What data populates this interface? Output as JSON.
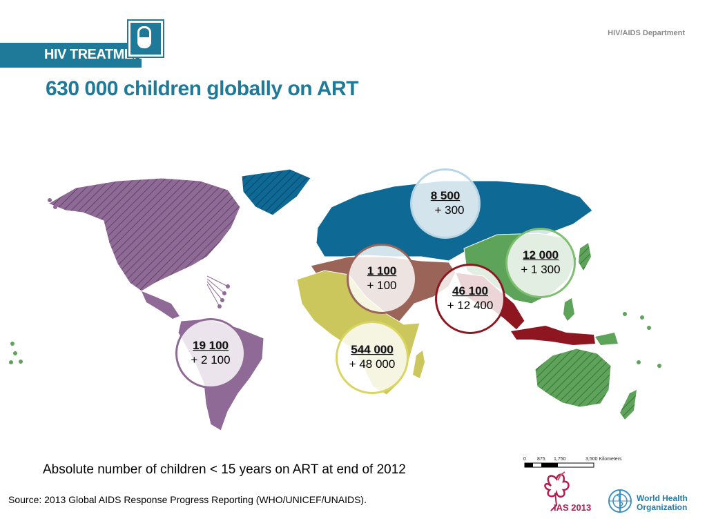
{
  "header": {
    "banner_label": "HIV TREATMENT",
    "department": "HIV/AIDS Department",
    "pill_icon": "pill-icon"
  },
  "title": "630 000 children globally on ART",
  "regions": [
    {
      "id": "europe",
      "total": "8 500",
      "change": "+ 300",
      "color": "#0e6a95"
    },
    {
      "id": "western-pacific",
      "total": "12 000",
      "change": "+ 1 300",
      "color": "#5ea35a"
    },
    {
      "id": "eastern-mediterranean",
      "total": "1 100",
      "change": "+ 100",
      "color": "#9a6459"
    },
    {
      "id": "south-east-asia",
      "total": "46 100",
      "change": "+ 12 400",
      "color": "#8e1620"
    },
    {
      "id": "americas",
      "total": "19 100",
      "change": "+ 2 100",
      "color": "#8f6a96"
    },
    {
      "id": "africa",
      "total": "544 000",
      "change": "+ 48 000",
      "color": "#cbc75c"
    }
  ],
  "caption": "Absolute number of children < 15 years on ART at end of 2012",
  "source": "Source: 2013 Global AIDS Response Progress Reporting (WHO/UNICEF/UNAIDS).",
  "scale_bar": {
    "ticks": [
      "0",
      "875",
      "1,750",
      "3,500 Kilometers"
    ]
  },
  "logos": {
    "ias_text": "IAS 2013",
    "who_line1": "World Health",
    "who_line2": "Organization"
  }
}
